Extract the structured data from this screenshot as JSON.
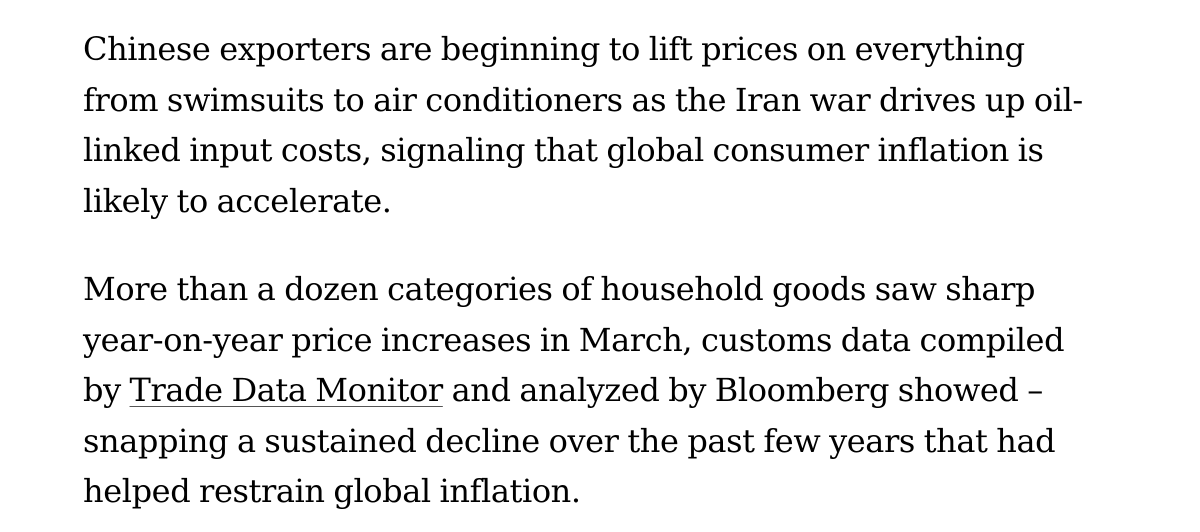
{
  "article": {
    "paragraph_1": "Chinese exporters are beginning to lift prices on everything from swimsuits to air conditioners as the Iran war drives up oil-linked input costs, signaling that global consumer inflation is likely to accelerate.",
    "paragraph_2": {
      "text_before_link": "More than a dozen categories of household goods saw sharp year-on-year price increases in March, customs data compiled by ",
      "link_text": "Trade Data Monitor",
      "text_after_link": " and analyzed by Bloomberg showed – snapping a sustained decline over the past few years that had helped restrain global inflation."
    }
  }
}
